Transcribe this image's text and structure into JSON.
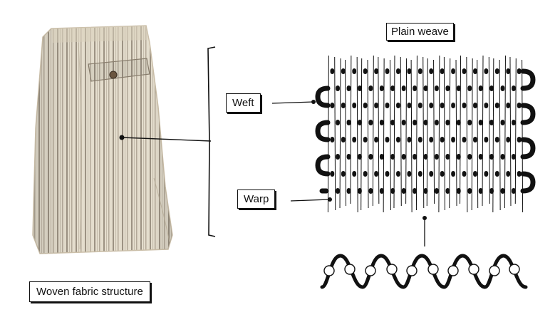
{
  "labels": {
    "plain_weave": "Plain weave",
    "weft": "Weft",
    "warp": "Warp",
    "title": "Woven fabric structure"
  },
  "colors": {
    "fabric_base": "#e4ddcd",
    "fabric_stripe": "#9a8f80",
    "ink": "#111111",
    "background": "#ffffff"
  },
  "icons": {
    "trousers": "folded-striped-trousers-illustration",
    "weave": "plain-weave-sketch",
    "cross_section": "weave-cross-section-sketch"
  }
}
